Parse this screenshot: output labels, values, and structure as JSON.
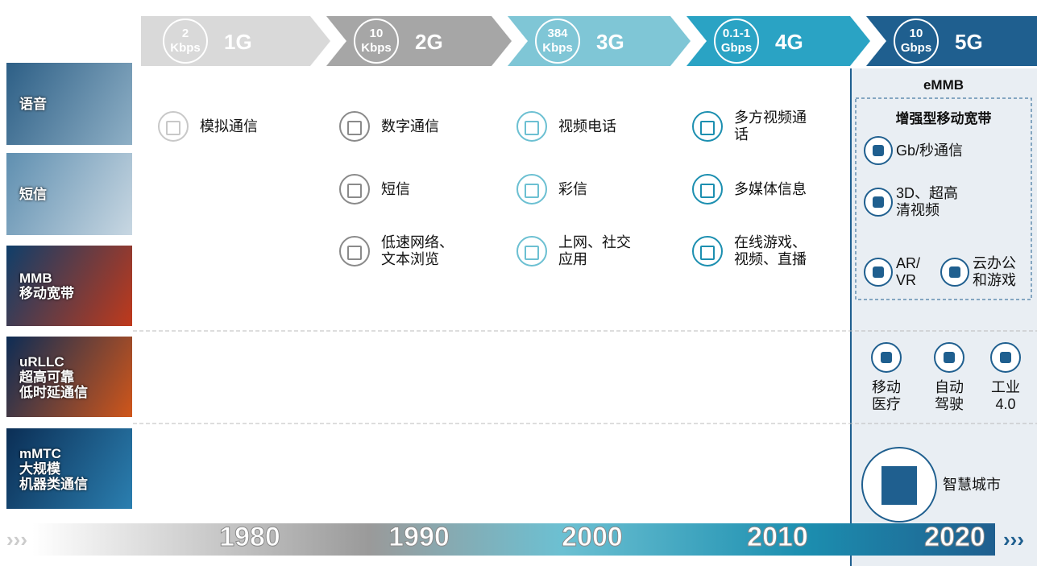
{
  "header": {
    "generations": [
      {
        "speed": "2",
        "unit": "Kbps",
        "name": "1G"
      },
      {
        "speed": "10",
        "unit": "Kbps",
        "name": "2G"
      },
      {
        "speed": "384",
        "unit": "Kbps",
        "name": "3G"
      },
      {
        "speed": "0.1-1",
        "unit": "Gbps",
        "name": "4G"
      },
      {
        "speed": "10",
        "unit": "Gbps",
        "name": "5G"
      }
    ]
  },
  "use_cases": [
    {
      "lines": [
        "语音"
      ]
    },
    {
      "lines": [
        "短信"
      ]
    },
    {
      "lines": [
        "MMB",
        "移动宽带"
      ]
    },
    {
      "lines": [
        "uRLLC",
        "超高可靠",
        "低时延通信"
      ]
    },
    {
      "lines": [
        "mMTC",
        "大规模",
        "机器类通信"
      ]
    }
  ],
  "columns": [
    [
      {
        "lines": [
          "模拟通信"
        ]
      }
    ],
    [
      {
        "lines": [
          "数字通信"
        ]
      },
      {
        "lines": [
          "短信"
        ]
      },
      {
        "lines": [
          "低速网络、",
          "文本浏览"
        ]
      }
    ],
    [
      {
        "lines": [
          "视频电话"
        ]
      },
      {
        "lines": [
          "彩信"
        ]
      },
      {
        "lines": [
          "上网、社交",
          "应用"
        ]
      }
    ],
    [
      {
        "lines": [
          "多方视频通",
          "话"
        ]
      },
      {
        "lines": [
          "多媒体信息"
        ]
      },
      {
        "lines": [
          "在线游戏、",
          "视频、直播"
        ]
      }
    ]
  ],
  "g5": {
    "embb": {
      "title": "eMMB",
      "subtitle": "增强型移动宽带",
      "items": [
        {
          "lines": [
            "Gb/秒通信"
          ]
        },
        {
          "lines": [
            "3D、超高",
            "清视频"
          ]
        },
        {
          "lines": [
            "AR/",
            "VR"
          ]
        },
        {
          "lines": [
            "云办公",
            "和游戏"
          ]
        }
      ]
    },
    "urllc": [
      {
        "lines": [
          "移动",
          "医疗"
        ]
      },
      {
        "lines": [
          "自动",
          "驾驶"
        ]
      },
      {
        "lines": [
          "工业",
          "4.0"
        ]
      }
    ],
    "mmtc": {
      "lines": [
        "智慧城市"
      ]
    }
  },
  "timeline": [
    "1980",
    "1990",
    "2000",
    "2010",
    "2020"
  ]
}
